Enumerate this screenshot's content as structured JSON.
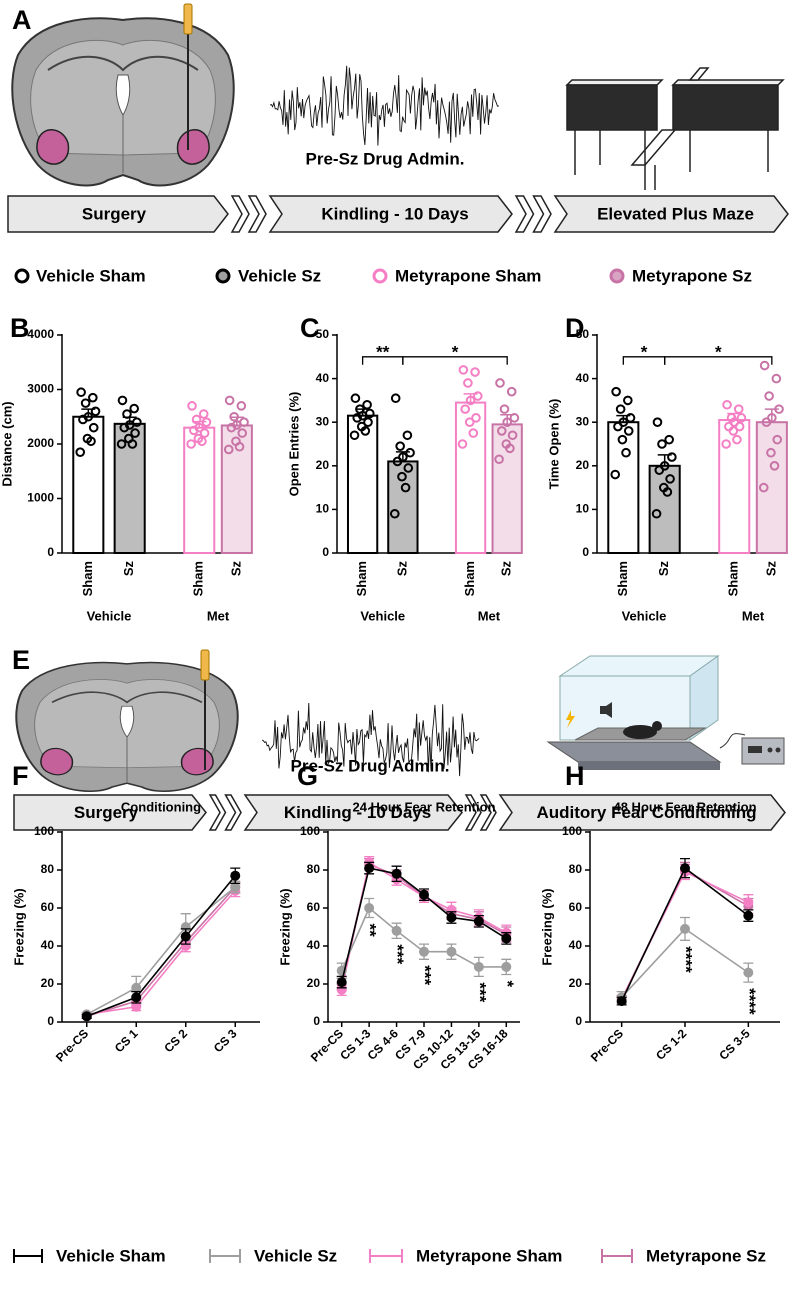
{
  "schematic_a": {
    "label": "A",
    "drug_label": "Pre-Sz Drug Admin.",
    "steps": [
      "Surgery",
      "Kindling - 10 Days",
      "Elevated Plus Maze"
    ]
  },
  "legend_top": [
    {
      "name": "Vehicle Sham",
      "fill": "#ffffff",
      "stroke": "#000000"
    },
    {
      "name": "Vehicle Sz",
      "fill": "#9e9e9e",
      "stroke": "#000000"
    },
    {
      "name": "Metyrapone Sham",
      "fill": "#ffffff",
      "stroke": "#f47fc4"
    },
    {
      "name": "Metyrapone Sz",
      "fill": "#d9a3c4",
      "stroke": "#c873a6"
    }
  ],
  "schematic_e": {
    "label": "E",
    "drug_label": "Pre-Sz Drug Admin.",
    "steps": [
      "Surgery",
      "Kindling - 10 Days",
      "Auditory Fear Conditioning"
    ]
  },
  "legend_bottom": [
    {
      "name": "Vehicle Sham",
      "color": "#000000"
    },
    {
      "name": "Vehicle Sz",
      "color": "#9e9e9e"
    },
    {
      "name": "Metyrapone Sham",
      "color": "#f47fc4"
    },
    {
      "name": "Metyrapone Sz",
      "color": "#c873a6"
    }
  ],
  "chart_data": [
    {
      "type": "bar",
      "label": "B",
      "y_label": "Distance (cm)",
      "categories": [
        "Sham",
        "Sz",
        "Sham",
        "Sz"
      ],
      "groups": [
        "Vehicle",
        "Met"
      ],
      "values": [
        2500,
        2370,
        2300,
        2340
      ],
      "errors": [
        140,
        120,
        110,
        150
      ],
      "points": [
        [
          2950,
          2850,
          2750,
          2600,
          2500,
          2450,
          2300,
          2100,
          2050,
          1850
        ],
        [
          2800,
          2650,
          2550,
          2400,
          2350,
          2300,
          2200,
          2100,
          2000,
          2000
        ],
        [
          2700,
          2550,
          2450,
          2400,
          2300,
          2250,
          2200,
          2100,
          2050,
          2000
        ],
        [
          2800,
          2700,
          2500,
          2400,
          2350,
          2300,
          2200,
          2050,
          1950,
          1900
        ]
      ],
      "fills": [
        "#ffffff",
        "#bdbdbd",
        "#ffffff",
        "#f3dde9"
      ],
      "strokes": [
        "#000000",
        "#000000",
        "#f47fc4",
        "#c873a6"
      ],
      "ylim": [
        0,
        4000
      ],
      "yticks": [
        0,
        1000,
        2000,
        3000,
        4000
      ],
      "significance": []
    },
    {
      "type": "bar",
      "label": "C",
      "y_label": "Open Entries (%)",
      "categories": [
        "Sham",
        "Sz",
        "Sham",
        "Sz"
      ],
      "groups": [
        "Vehicle",
        "Met"
      ],
      "values": [
        31.5,
        21,
        34.5,
        29.5
      ],
      "errors": [
        1.5,
        2.2,
        2,
        2.2
      ],
      "points": [
        [
          35.5,
          34,
          33,
          32,
          31.5,
          31,
          30,
          29,
          28,
          27
        ],
        [
          35.5,
          27,
          24.5,
          23,
          22,
          21,
          19.5,
          17.5,
          15,
          9
        ],
        [
          42,
          41.5,
          39,
          36,
          35,
          33,
          31,
          30,
          27.5,
          25
        ],
        [
          39,
          37,
          33,
          31,
          30,
          28,
          27,
          25,
          24,
          21.5
        ]
      ],
      "fills": [
        "#ffffff",
        "#bdbdbd",
        "#ffffff",
        "#f3dde9"
      ],
      "strokes": [
        "#000000",
        "#000000",
        "#f47fc4",
        "#c873a6"
      ],
      "ylim": [
        0,
        50
      ],
      "yticks": [
        0,
        10,
        20,
        30,
        40,
        50
      ],
      "significance": [
        "**",
        "*"
      ]
    },
    {
      "type": "bar",
      "label": "D",
      "y_label": "Time Open (%)",
      "categories": [
        "Sham",
        "Sz",
        "Sham",
        "Sz"
      ],
      "groups": [
        "Vehicle",
        "Met"
      ],
      "values": [
        30,
        20,
        30.5,
        30
      ],
      "errors": [
        1.5,
        2.5,
        1.5,
        3
      ],
      "points": [
        [
          37,
          35,
          33,
          31,
          30,
          29,
          28,
          26,
          23,
          18
        ],
        [
          30,
          26,
          25,
          22,
          20,
          19,
          17,
          15,
          14,
          9
        ],
        [
          34,
          33,
          31,
          31,
          30,
          29,
          29,
          28,
          26,
          25
        ],
        [
          43,
          40,
          36,
          33,
          31,
          30,
          26,
          23,
          20,
          15
        ]
      ],
      "fills": [
        "#ffffff",
        "#bdbdbd",
        "#ffffff",
        "#f3dde9"
      ],
      "strokes": [
        "#000000",
        "#000000",
        "#f47fc4",
        "#c873a6"
      ],
      "ylim": [
        0,
        50
      ],
      "yticks": [
        0,
        10,
        20,
        30,
        40,
        50
      ],
      "significance": [
        "*",
        "*"
      ]
    },
    {
      "type": "line",
      "label": "F",
      "title": "Conditioning",
      "y_label": "Freezing (%)",
      "categories": [
        "Pre-CS",
        "CS 1",
        "CS 2",
        "CS 3"
      ],
      "series": [
        {
          "name": "Vehicle Sham",
          "color": "#000000",
          "values": [
            3,
            13,
            45,
            77
          ],
          "errors": [
            1,
            3,
            4,
            4
          ]
        },
        {
          "name": "Vehicle Sz",
          "color": "#9e9e9e",
          "values": [
            4,
            18,
            50,
            71
          ],
          "errors": [
            1,
            6,
            7,
            3
          ]
        },
        {
          "name": "Metyrapone Sham",
          "color": "#f47fc4",
          "values": [
            4,
            8,
            40,
            69
          ],
          "errors": [
            1,
            2,
            3,
            3
          ]
        },
        {
          "name": "Metyrapone Sz",
          "color": "#c873a6",
          "values": [
            3,
            11,
            42,
            71
          ],
          "errors": [
            1,
            2,
            3,
            3
          ]
        }
      ],
      "ylim": [
        0,
        100
      ],
      "yticks": [
        0,
        20,
        40,
        60,
        80,
        100
      ],
      "annotations": [
        null,
        null,
        null,
        null
      ]
    },
    {
      "type": "line",
      "label": "G",
      "title": "24 Hour Fear Retention",
      "y_label": "Freezing (%)",
      "categories": [
        "Pre-CS",
        "CS 1-3",
        "CS 4-6",
        "CS 7-9",
        "CS 10-12",
        "CS 13-15",
        "CS 16-18"
      ],
      "series": [
        {
          "name": "Vehicle Sham",
          "color": "#000000",
          "values": [
            21,
            81,
            78,
            67,
            55,
            53,
            44
          ],
          "errors": [
            3,
            3,
            4,
            3,
            3,
            3,
            3
          ]
        },
        {
          "name": "Vehicle Sz",
          "color": "#9e9e9e",
          "values": [
            27,
            60,
            48,
            37,
            37,
            29,
            29
          ],
          "errors": [
            4,
            5,
            4,
            4,
            4,
            5,
            4
          ]
        },
        {
          "name": "Metyrapone Sham",
          "color": "#f47fc4",
          "values": [
            17,
            84,
            75,
            66,
            59,
            55,
            47
          ],
          "errors": [
            3,
            3,
            3,
            3,
            4,
            4,
            4
          ]
        },
        {
          "name": "Metyrapone Sz",
          "color": "#c873a6",
          "values": [
            20,
            83,
            77,
            66,
            57,
            54,
            46
          ],
          "errors": [
            3,
            3,
            3,
            3,
            3,
            4,
            4
          ]
        }
      ],
      "ylim": [
        0,
        100
      ],
      "yticks": [
        0,
        20,
        40,
        60,
        80,
        100
      ],
      "annotations": [
        null,
        "**",
        "***",
        "***",
        null,
        "***",
        "*"
      ]
    },
    {
      "type": "line",
      "label": "H",
      "title": "48 Hour Fear Retention",
      "y_label": "Freezing (%)",
      "categories": [
        "Pre-CS",
        "CS 1-2",
        "CS 3-5"
      ],
      "series": [
        {
          "name": "Vehicle Sham",
          "color": "#000000",
          "values": [
            11,
            81,
            56
          ],
          "errors": [
            2,
            5,
            3
          ]
        },
        {
          "name": "Vehicle Sz",
          "color": "#9e9e9e",
          "values": [
            13,
            49,
            26
          ],
          "errors": [
            3,
            6,
            5
          ]
        },
        {
          "name": "Metyrapone Sham",
          "color": "#f47fc4",
          "values": [
            12,
            79,
            63
          ],
          "errors": [
            2,
            4,
            4
          ]
        },
        {
          "name": "Metyrapone Sz",
          "color": "#c873a6",
          "values": [
            12,
            80,
            61
          ],
          "errors": [
            2,
            4,
            4
          ]
        }
      ],
      "ylim": [
        0,
        100
      ],
      "yticks": [
        0,
        20,
        40,
        60,
        80,
        100
      ],
      "annotations": [
        null,
        "****",
        "****"
      ]
    }
  ]
}
